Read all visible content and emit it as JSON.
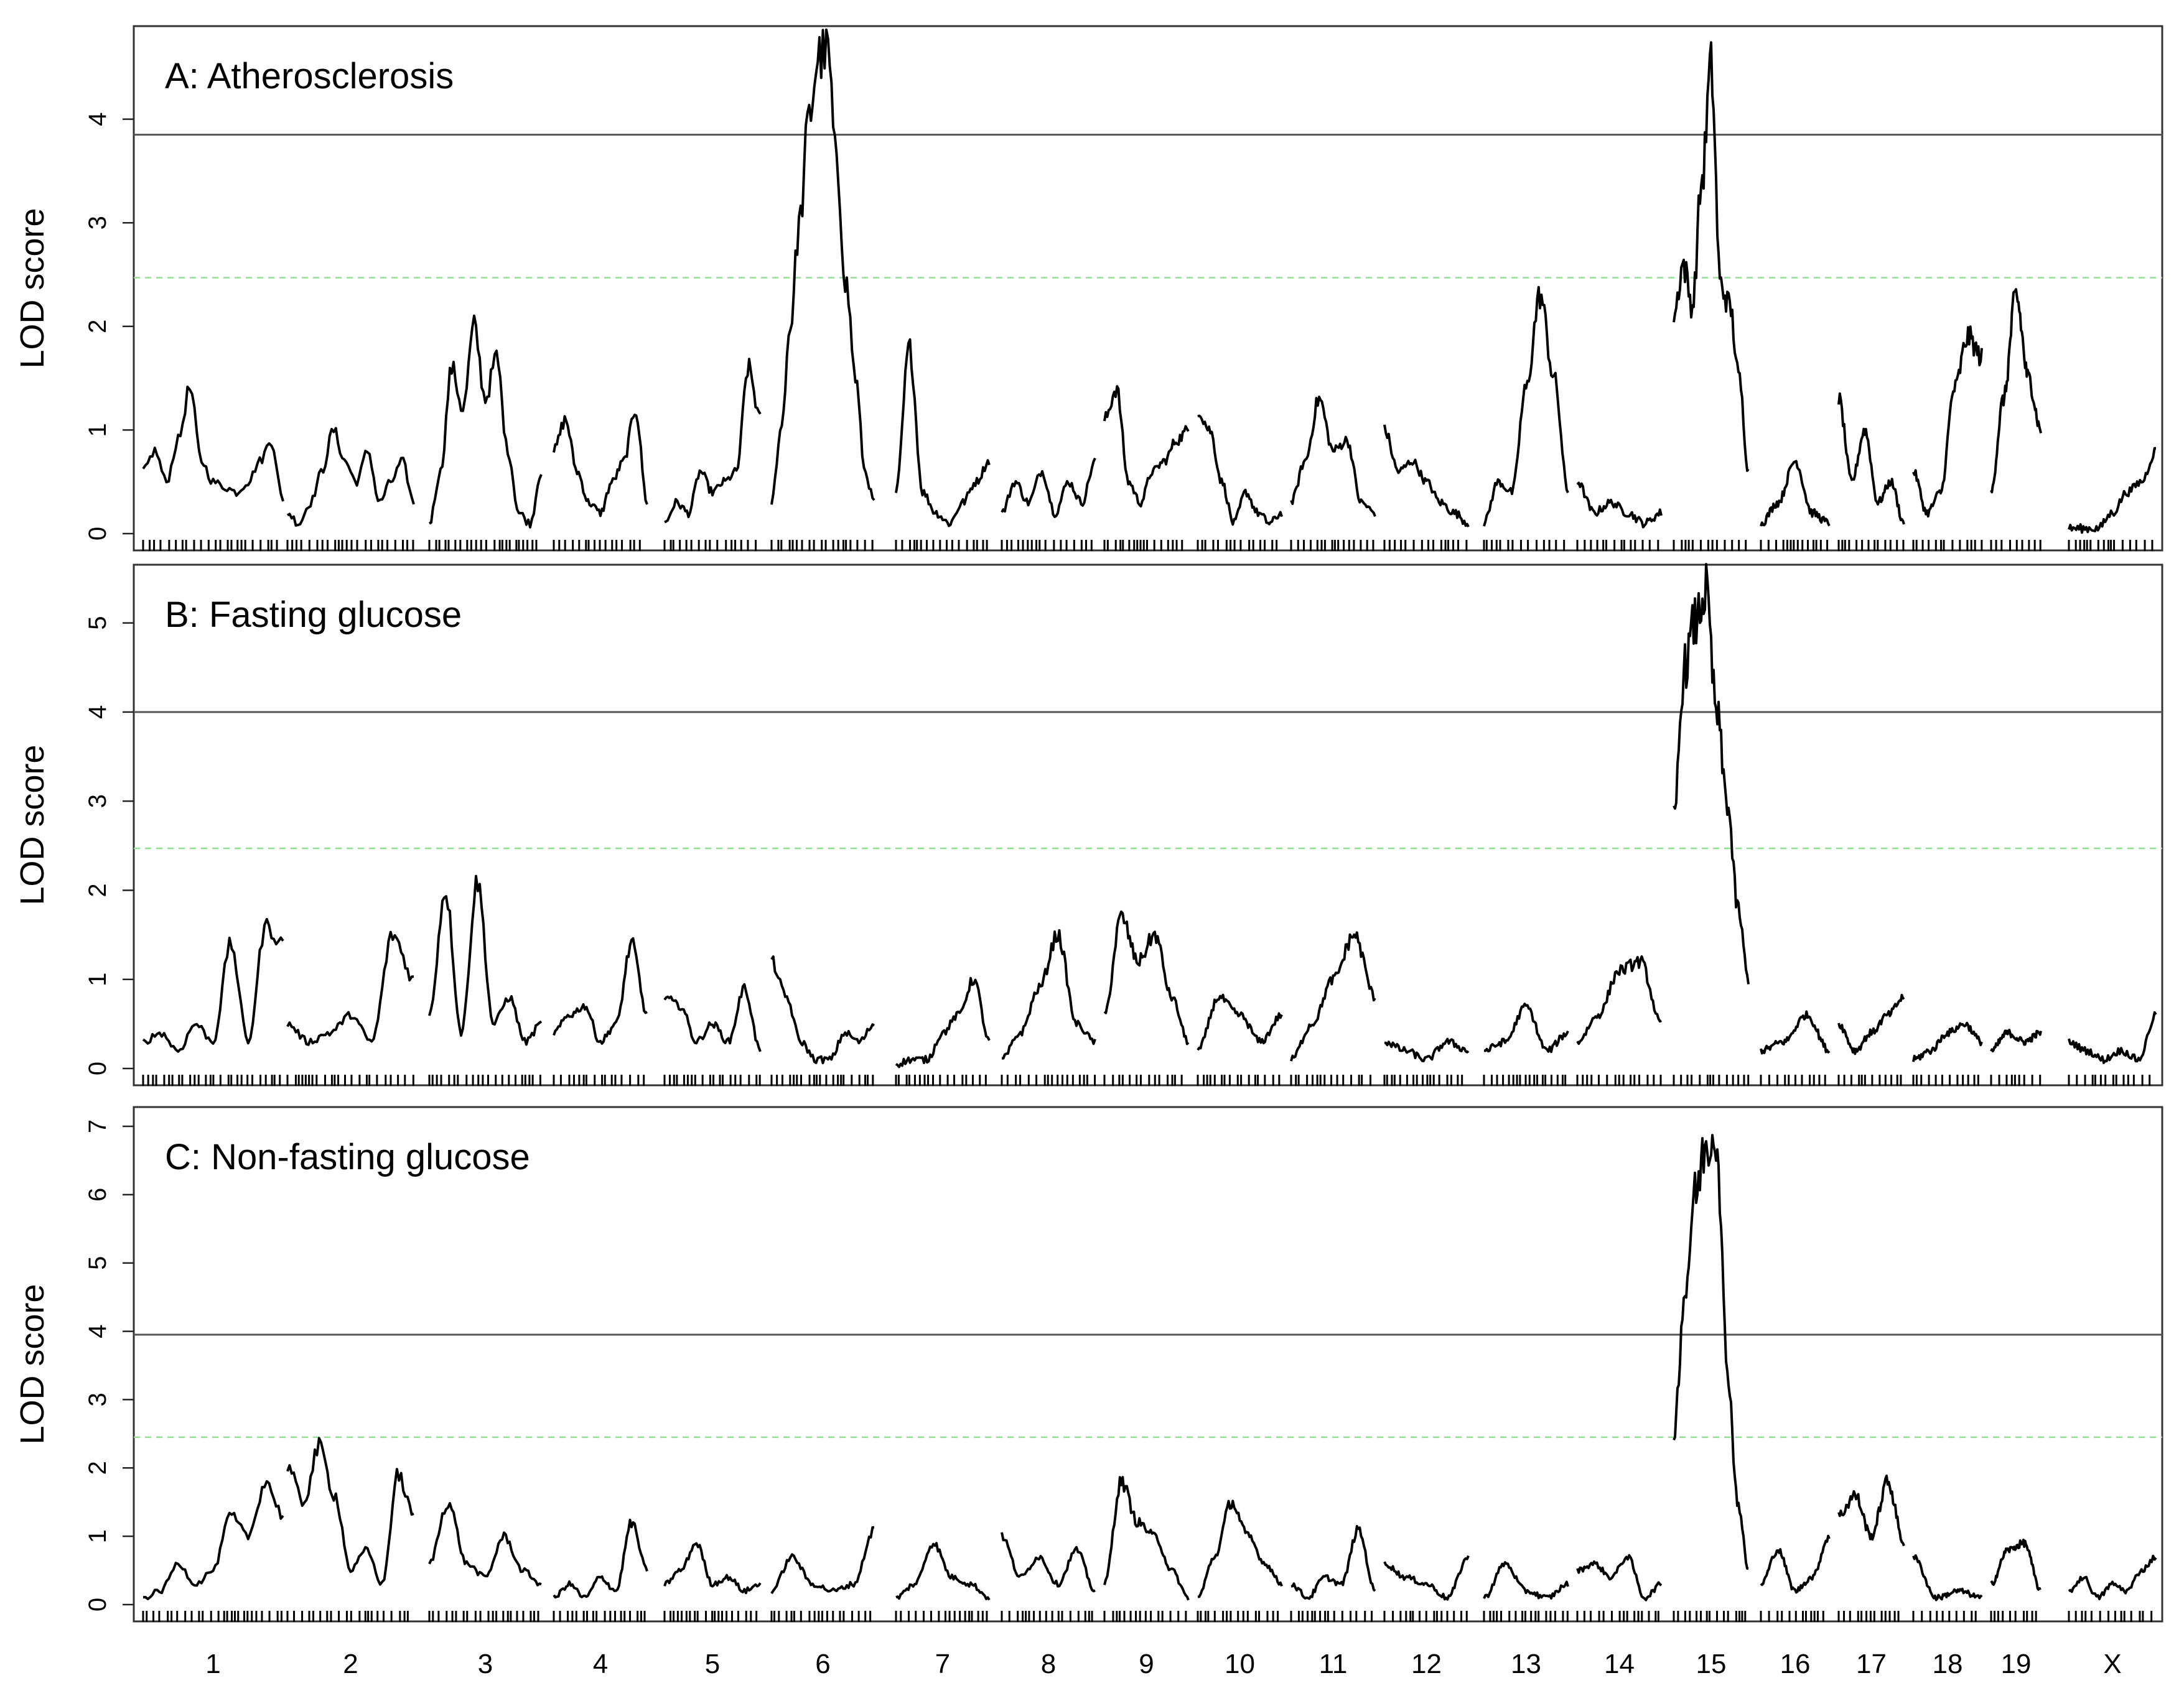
{
  "chart_data": {
    "type": "line",
    "chromosomes": [
      "1",
      "2",
      "3",
      "4",
      "5",
      "6",
      "7",
      "8",
      "9",
      "10",
      "11",
      "12",
      "13",
      "14",
      "15",
      "16",
      "17",
      "18",
      "19",
      "X"
    ],
    "xlabel": "",
    "panels": [
      {
        "title": "A: Atherosclerosis",
        "ylabel": "LOD score",
        "yticks": [
          "0",
          "1",
          "2",
          "3",
          "4"
        ],
        "ylim": [
          0,
          4.7
        ],
        "threshold_significant": 3.85,
        "threshold_suggestive": 2.47,
        "peaks": [
          {
            "chr": "1",
            "values": [
              0.6,
              0.8,
              0.5,
              0.9,
              1.4,
              0.7,
              0.5,
              0.45,
              0.4,
              0.5,
              0.7,
              0.9,
              0.3
            ]
          },
          {
            "chr": "2",
            "values": [
              0.2,
              0.1,
              0.3,
              0.6,
              1.0,
              0.7,
              0.5,
              0.8,
              0.3,
              0.5,
              0.7,
              0.3
            ]
          },
          {
            "chr": "3",
            "values": [
              0.1,
              0.6,
              1.6,
              1.2,
              2.0,
              1.3,
              1.7,
              0.8,
              0.2,
              0.1,
              0.6
            ]
          },
          {
            "chr": "4",
            "values": [
              0.8,
              1.1,
              0.6,
              0.3,
              0.2,
              0.5,
              0.7,
              1.2,
              0.3
            ]
          },
          {
            "chr": "5",
            "values": [
              0.1,
              0.3,
              0.2,
              0.6,
              0.4,
              0.5,
              0.6,
              1.6,
              1.1
            ]
          },
          {
            "chr": "6",
            "values": [
              0.3,
              1.0,
              2.0,
              3.0,
              4.0,
              4.6,
              4.65,
              3.5,
              2.4,
              1.5,
              0.6,
              0.3
            ]
          },
          {
            "chr": "7",
            "values": [
              0.4,
              1.8,
              0.4,
              0.2,
              0.1,
              0.3,
              0.5,
              0.7
            ]
          },
          {
            "chr": "8",
            "values": [
              0.2,
              0.5,
              0.3,
              0.6,
              0.2,
              0.5,
              0.3,
              0.7
            ]
          },
          {
            "chr": "9",
            "values": [
              1.1,
              1.4,
              0.5,
              0.3,
              0.6,
              0.7,
              0.9,
              1.0
            ]
          },
          {
            "chr": "10",
            "values": [
              1.2,
              1.0,
              0.5,
              0.1,
              0.4,
              0.2,
              0.1,
              0.2
            ]
          },
          {
            "chr": "11",
            "values": [
              0.3,
              0.7,
              1.3,
              0.8,
              0.9,
              0.3,
              0.2
            ]
          },
          {
            "chr": "12",
            "values": [
              1.0,
              0.6,
              0.7,
              0.5,
              0.3,
              0.2,
              0.1
            ]
          },
          {
            "chr": "13",
            "values": [
              0.1,
              0.5,
              0.4,
              1.4,
              2.3,
              1.5,
              0.4
            ]
          },
          {
            "chr": "14",
            "values": [
              0.5,
              0.2,
              0.3,
              0.2,
              0.1,
              0.2
            ]
          },
          {
            "chr": "15",
            "values": [
              2.1,
              2.6,
              2.2,
              3.4,
              4.5,
              2.4,
              2.2,
              1.5,
              0.6
            ]
          },
          {
            "chr": "16",
            "values": [
              0.1,
              0.3,
              0.7,
              0.2,
              0.1
            ]
          },
          {
            "chr": "17",
            "values": [
              1.3,
              0.5,
              1.0,
              0.3,
              0.5,
              0.1
            ]
          },
          {
            "chr": "18",
            "values": [
              0.6,
              0.2,
              0.4,
              1.4,
              1.9,
              1.7
            ]
          },
          {
            "chr": "19",
            "values": [
              0.4,
              1.3,
              2.3,
              1.5,
              1.0
            ]
          },
          {
            "chr": "X",
            "values": [
              0.05,
              0.05,
              0.05,
              0.2,
              0.4,
              0.5,
              0.8
            ]
          }
        ]
      },
      {
        "title": "B: Fasting glucose",
        "ylabel": "LOD score",
        "yticks": [
          "0",
          "1",
          "2",
          "3",
          "4",
          "5"
        ],
        "ylim": [
          0,
          5.5
        ],
        "threshold_significant": 4.0,
        "threshold_suggestive": 2.47,
        "peaks": [
          {
            "chr": "1",
            "values": [
              0.3,
              0.4,
              0.2,
              0.5,
              0.3,
              1.4,
              0.3,
              1.6,
              1.4
            ]
          },
          {
            "chr": "2",
            "values": [
              0.5,
              0.3,
              0.4,
              0.6,
              0.3,
              1.5,
              1.0
            ]
          },
          {
            "chr": "3",
            "values": [
              0.6,
              2.0,
              0.4,
              2.1,
              0.5,
              0.8,
              0.3,
              0.5
            ]
          },
          {
            "chr": "4",
            "values": [
              0.4,
              0.6,
              0.7,
              0.3,
              0.5,
              1.4,
              0.6
            ]
          },
          {
            "chr": "5",
            "values": [
              0.8,
              0.7,
              0.3,
              0.5,
              0.3,
              0.9,
              0.2
            ]
          },
          {
            "chr": "6",
            "values": [
              1.2,
              0.8,
              0.3,
              0.1,
              0.1,
              0.4,
              0.3,
              0.5
            ]
          },
          {
            "chr": "7",
            "values": [
              0.05,
              0.1,
              0.1,
              0.4,
              0.6,
              1.0,
              0.3
            ]
          },
          {
            "chr": "8",
            "values": [
              0.1,
              0.4,
              0.9,
              1.5,
              0.5,
              0.3
            ]
          },
          {
            "chr": "9",
            "values": [
              0.6,
              1.7,
              1.2,
              1.5,
              0.8,
              0.3
            ]
          },
          {
            "chr": "10",
            "values": [
              0.2,
              0.8,
              0.6,
              0.3,
              0.6
            ]
          },
          {
            "chr": "11",
            "values": [
              0.1,
              0.5,
              1.0,
              1.5,
              0.8
            ]
          },
          {
            "chr": "12",
            "values": [
              0.3,
              0.2,
              0.1,
              0.3,
              0.2
            ]
          },
          {
            "chr": "13",
            "values": [
              0.2,
              0.3,
              0.7,
              0.2,
              0.4
            ]
          },
          {
            "chr": "14",
            "values": [
              0.3,
              0.6,
              1.1,
              1.2,
              0.5
            ]
          },
          {
            "chr": "15",
            "values": [
              2.8,
              4.5,
              5.0,
              5.35,
              4.0,
              3.0,
              1.8,
              1.0
            ]
          },
          {
            "chr": "16",
            "values": [
              0.2,
              0.3,
              0.6,
              0.2
            ]
          },
          {
            "chr": "17",
            "values": [
              0.5,
              0.2,
              0.4,
              0.6,
              0.8
            ]
          },
          {
            "chr": "18",
            "values": [
              0.1,
              0.2,
              0.4,
              0.5,
              0.3
            ]
          },
          {
            "chr": "19",
            "values": [
              0.2,
              0.4,
              0.3,
              0.4
            ]
          },
          {
            "chr": "X",
            "values": [
              0.3,
              0.2,
              0.1,
              0.2,
              0.1,
              0.6
            ]
          }
        ]
      },
      {
        "title": "C: Non-fasting glucose",
        "ylabel": "LOD score",
        "yticks": [
          "0",
          "1",
          "2",
          "3",
          "4",
          "5",
          "6",
          "7"
        ],
        "ylim": [
          0,
          7.1
        ],
        "threshold_significant": 3.95,
        "threshold_suggestive": 2.45,
        "peaks": [
          {
            "chr": "1",
            "values": [
              0.1,
              0.2,
              0.6,
              0.3,
              0.5,
              1.3,
              1.0,
              1.8,
              1.3
            ]
          },
          {
            "chr": "2",
            "values": [
              2.0,
              1.5,
              2.3,
              1.6,
              0.5,
              0.8,
              0.3,
              1.9,
              1.3
            ]
          },
          {
            "chr": "3",
            "values": [
              0.6,
              1.5,
              0.6,
              0.4,
              1.0,
              0.5,
              0.3
            ]
          },
          {
            "chr": "4",
            "values": [
              0.1,
              0.3,
              0.1,
              0.4,
              0.2,
              1.2,
              0.5
            ]
          },
          {
            "chr": "5",
            "values": [
              0.3,
              0.5,
              0.9,
              0.3,
              0.4,
              0.2,
              0.3
            ]
          },
          {
            "chr": "6",
            "values": [
              0.2,
              0.7,
              0.3,
              0.2,
              0.3,
              1.1
            ]
          },
          {
            "chr": "7",
            "values": [
              0.1,
              0.3,
              0.9,
              0.4,
              0.3,
              0.1
            ]
          },
          {
            "chr": "8",
            "values": [
              1.0,
              0.4,
              0.7,
              0.3,
              0.8,
              0.2
            ]
          },
          {
            "chr": "9",
            "values": [
              0.3,
              1.8,
              1.2,
              1.0,
              0.5,
              0.1
            ]
          },
          {
            "chr": "10",
            "values": [
              0.1,
              0.7,
              1.5,
              1.0,
              0.6,
              0.3
            ]
          },
          {
            "chr": "11",
            "values": [
              0.3,
              0.1,
              0.4,
              0.3,
              1.1,
              0.2
            ]
          },
          {
            "chr": "12",
            "values": [
              0.6,
              0.4,
              0.3,
              0.1,
              0.7
            ]
          },
          {
            "chr": "13",
            "values": [
              0.1,
              0.6,
              0.2,
              0.1,
              0.3
            ]
          },
          {
            "chr": "14",
            "values": [
              0.5,
              0.6,
              0.4,
              0.7,
              0.1,
              0.3
            ]
          },
          {
            "chr": "15",
            "values": [
              2.5,
              4.5,
              6.0,
              6.7,
              6.9,
              3.5,
              1.5,
              0.5
            ]
          },
          {
            "chr": "16",
            "values": [
              0.3,
              0.8,
              0.2,
              0.4,
              1.0
            ]
          },
          {
            "chr": "17",
            "values": [
              1.3,
              1.6,
              1.0,
              1.8,
              0.9
            ]
          },
          {
            "chr": "18",
            "values": [
              0.7,
              0.1,
              0.2,
              0.1
            ]
          },
          {
            "chr": "19",
            "values": [
              0.3,
              0.8,
              0.9,
              0.2
            ]
          },
          {
            "chr": "X",
            "values": [
              0.2,
              0.4,
              0.1,
              0.3,
              0.2,
              0.5,
              0.7
            ]
          }
        ]
      }
    ]
  }
}
